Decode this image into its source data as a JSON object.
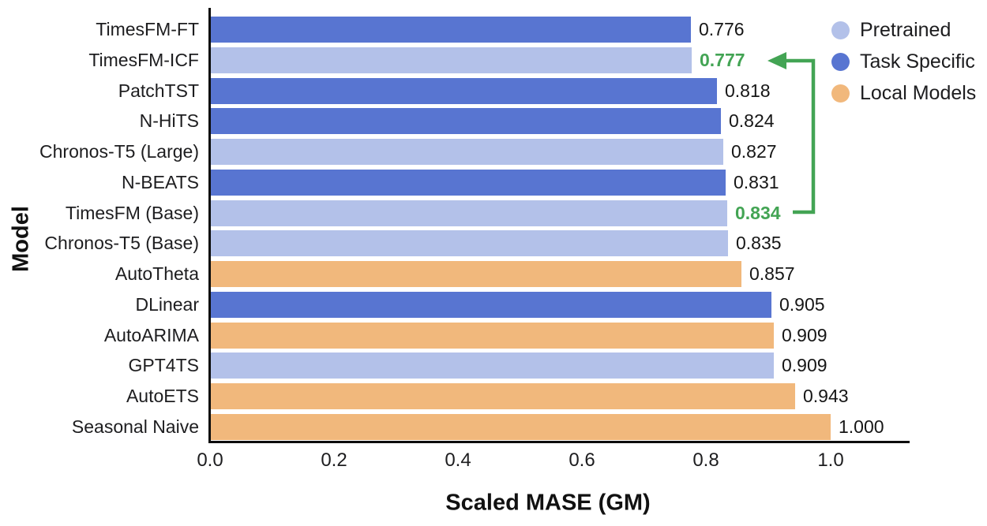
{
  "figure": {
    "background": "#ffffff",
    "axis_color": "#0c0c0c",
    "text_color": "#1d1d1f"
  },
  "legend": {
    "position": "top-right",
    "items": [
      {
        "label": "Pretrained",
        "color": "#b3c1e9"
      },
      {
        "label": "Task Specific",
        "color": "#5875d1"
      },
      {
        "label": "Local Models",
        "color": "#f1b87c"
      }
    ]
  },
  "annotation": {
    "color": "#43a454",
    "type": "arrow",
    "from_value": "0.834",
    "from_label": "TimesFM (Base)",
    "to_value": "0.777",
    "to_label": "TimesFM-ICF",
    "highlighted_values": [
      "0.777",
      "0.834"
    ]
  },
  "chart_data": {
    "type": "bar",
    "orientation": "horizontal",
    "title": "",
    "xlabel": "Scaled MASE (GM)",
    "ylabel": "Model",
    "xlim": [
      0,
      1.13
    ],
    "grid": false,
    "xticks": [
      "0.0",
      "0.2",
      "0.4",
      "0.6",
      "0.8",
      "1.0"
    ],
    "rows": [
      {
        "label": "TimesFM-FT",
        "value": 0.776,
        "display": "0.776",
        "group": "Task Specific",
        "highlight": false
      },
      {
        "label": "TimesFM-ICF",
        "value": 0.777,
        "display": "0.777",
        "group": "Pretrained",
        "highlight": true
      },
      {
        "label": "PatchTST",
        "value": 0.818,
        "display": "0.818",
        "group": "Task Specific",
        "highlight": false
      },
      {
        "label": "N-HiTS",
        "value": 0.824,
        "display": "0.824",
        "group": "Task Specific",
        "highlight": false
      },
      {
        "label": "Chronos-T5 (Large)",
        "value": 0.827,
        "display": "0.827",
        "group": "Pretrained",
        "highlight": false
      },
      {
        "label": "N-BEATS",
        "value": 0.831,
        "display": "0.831",
        "group": "Task Specific",
        "highlight": false
      },
      {
        "label": "TimesFM (Base)",
        "value": 0.834,
        "display": "0.834",
        "group": "Pretrained",
        "highlight": true
      },
      {
        "label": "Chronos-T5 (Base)",
        "value": 0.835,
        "display": "0.835",
        "group": "Pretrained",
        "highlight": false
      },
      {
        "label": "AutoTheta",
        "value": 0.857,
        "display": "0.857",
        "group": "Local Models",
        "highlight": false
      },
      {
        "label": "DLinear",
        "value": 0.905,
        "display": "0.905",
        "group": "Task Specific",
        "highlight": false
      },
      {
        "label": "AutoARIMA",
        "value": 0.909,
        "display": "0.909",
        "group": "Local Models",
        "highlight": false
      },
      {
        "label": "GPT4TS",
        "value": 0.909,
        "display": "0.909",
        "group": "Pretrained",
        "highlight": false
      },
      {
        "label": "AutoETS",
        "value": 0.943,
        "display": "0.943",
        "group": "Local Models",
        "highlight": false
      },
      {
        "label": "Seasonal Naive",
        "value": 1.0,
        "display": "1.000",
        "group": "Local Models",
        "highlight": false
      }
    ]
  }
}
